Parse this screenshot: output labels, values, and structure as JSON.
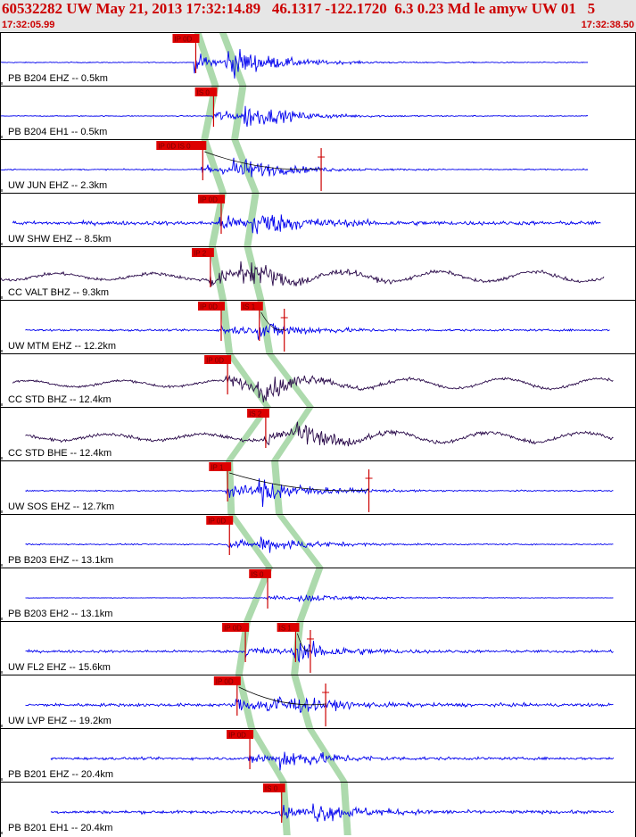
{
  "header": {
    "title": "60532282 UW May 21, 2013 17:32:14.89   46.1317 -122.1720  6.3 0.23 Md le amyw UW 01   5",
    "start_time": "17:32:05.99",
    "end_time": "17:32:38.50"
  },
  "colors": {
    "header_bg": "#e6e6e6",
    "header_text": "#cc0000",
    "trace_blue": "#0000ee",
    "trace_dark": "#2a0a4a",
    "pick_fill": "#dd0000",
    "pick_text": "#7a0000",
    "pick_line": "#cc0000",
    "window_band": "#9fd49f",
    "axis": "#000000"
  },
  "chart_data": {
    "type": "seismogram",
    "origin_time": "17:32:14.89",
    "time_range": [
      "17:32:05.99",
      "17:32:38.50"
    ],
    "traces": [
      {
        "label": "PB B204 EHZ -- 0.5km",
        "color": "blue",
        "amp": 0.9,
        "noise": 0.03,
        "start": 0.0,
        "end": 0.925,
        "pickGroup": 0,
        "picks": [
          {
            "text": "IP 0D",
            "t": 0.305
          }
        ],
        "marks": []
      },
      {
        "label": "PB B204 EH1 -- 0.5km",
        "color": "blue",
        "amp": 0.7,
        "noise": 0.03,
        "start": 0.0,
        "end": 0.925,
        "pickGroup": 1,
        "picks": [
          {
            "text": "IS 0",
            "t": 0.333
          }
        ],
        "marks": []
      },
      {
        "label": "UW JUN EHZ -- 2.3km",
        "color": "blue",
        "amp": 0.7,
        "noise": 0.04,
        "start": 0.0,
        "end": 0.925,
        "pickGroup": 2,
        "picks": [
          {
            "text": "IP 0D IS 0",
            "t": 0.316
          }
        ],
        "marks": [
          0.505
        ]
      },
      {
        "label": "UW SHW EHZ -- 8.5km",
        "color": "blue",
        "amp": 0.75,
        "noise": 0.12,
        "start": 0.02,
        "end": 0.945,
        "pickGroup": 3,
        "picks": [
          {
            "text": "IP 0D",
            "t": 0.345
          }
        ],
        "marks": []
      },
      {
        "label": "CC VALT BHZ -- 9.3km",
        "color": "dark",
        "amp": 0.8,
        "noise": 0.1,
        "start": 0.0,
        "end": 0.95,
        "pickGroup": 4,
        "picks": [
          {
            "text": "IP 2",
            "t": 0.328
          }
        ],
        "marks": []
      },
      {
        "label": "UW MTM EHZ -- 12.2km",
        "color": "blue",
        "amp": 0.55,
        "noise": 0.06,
        "start": 0.04,
        "end": 0.96,
        "pickGroup": 5,
        "picks": [
          {
            "text": "IP 0D",
            "t": 0.345
          },
          {
            "text": "IS 1",
            "t": 0.405
          }
        ],
        "marks": [
          0.447
        ]
      },
      {
        "label": "CC STD BHZ -- 12.4km",
        "color": "dark",
        "amp": 0.65,
        "noise": 0.08,
        "start": 0.02,
        "end": 0.965,
        "pickGroup": 6,
        "picks": [
          {
            "text": "IP 0D",
            "t": 0.355
          }
        ],
        "marks": []
      },
      {
        "label": "CC STD BHE -- 12.4km",
        "color": "dark",
        "amp": 0.6,
        "noise": 0.1,
        "start": 0.04,
        "end": 0.965,
        "pickGroup": 7,
        "picks": [
          {
            "text": "IS 2",
            "t": 0.415
          }
        ],
        "marks": []
      },
      {
        "label": "UW SOS EHZ -- 12.7km",
        "color": "blue",
        "amp": 0.8,
        "noise": 0.04,
        "start": 0.04,
        "end": 0.965,
        "pickGroup": 8,
        "picks": [
          {
            "text": "IP 1",
            "t": 0.355
          }
        ],
        "marks": [
          0.58
        ]
      },
      {
        "label": "PB B203 EHZ -- 13.1km",
        "color": "blue",
        "amp": 0.5,
        "noise": 0.04,
        "start": 0.04,
        "end": 0.965,
        "pickGroup": 9,
        "picks": [
          {
            "text": "IP 0D",
            "t": 0.358
          }
        ],
        "marks": []
      },
      {
        "label": "PB B203 EH2 -- 13.1km",
        "color": "blue",
        "amp": 0.25,
        "noise": 0.02,
        "start": 0.04,
        "end": 0.965,
        "pickGroup": 10,
        "picks": [
          {
            "text": "IS 0",
            "t": 0.418
          }
        ],
        "marks": []
      },
      {
        "label": "UW FL2 EHZ -- 15.6km",
        "color": "blue",
        "amp": 0.6,
        "noise": 0.08,
        "start": 0.04,
        "end": 0.965,
        "pickGroup": 11,
        "picks": [
          {
            "text": "IP 0D",
            "t": 0.383
          },
          {
            "text": "IS 1",
            "t": 0.462
          }
        ],
        "marks": [
          0.488
        ]
      },
      {
        "label": "UW LVP EHZ -- 19.2km",
        "color": "blue",
        "amp": 0.7,
        "noise": 0.1,
        "start": 0.04,
        "end": 0.965,
        "pickGroup": 12,
        "picks": [
          {
            "text": "IP 0D",
            "t": 0.37
          }
        ],
        "marks": [
          0.512
        ]
      },
      {
        "label": "PB B201 EHZ -- 20.4km",
        "color": "blue",
        "amp": 0.6,
        "noise": 0.08,
        "start": 0.08,
        "end": 0.965,
        "pickGroup": 13,
        "picks": [
          {
            "text": "IP 0D",
            "t": 0.39
          }
        ],
        "marks": []
      },
      {
        "label": "PB B201 EH1 -- 20.4km",
        "color": "blue",
        "amp": 0.55,
        "noise": 0.1,
        "start": 0.08,
        "end": 0.965,
        "pickGroup": 14,
        "picks": [
          {
            "text": "IS 0",
            "t": 0.44
          }
        ],
        "marks": []
      }
    ]
  }
}
